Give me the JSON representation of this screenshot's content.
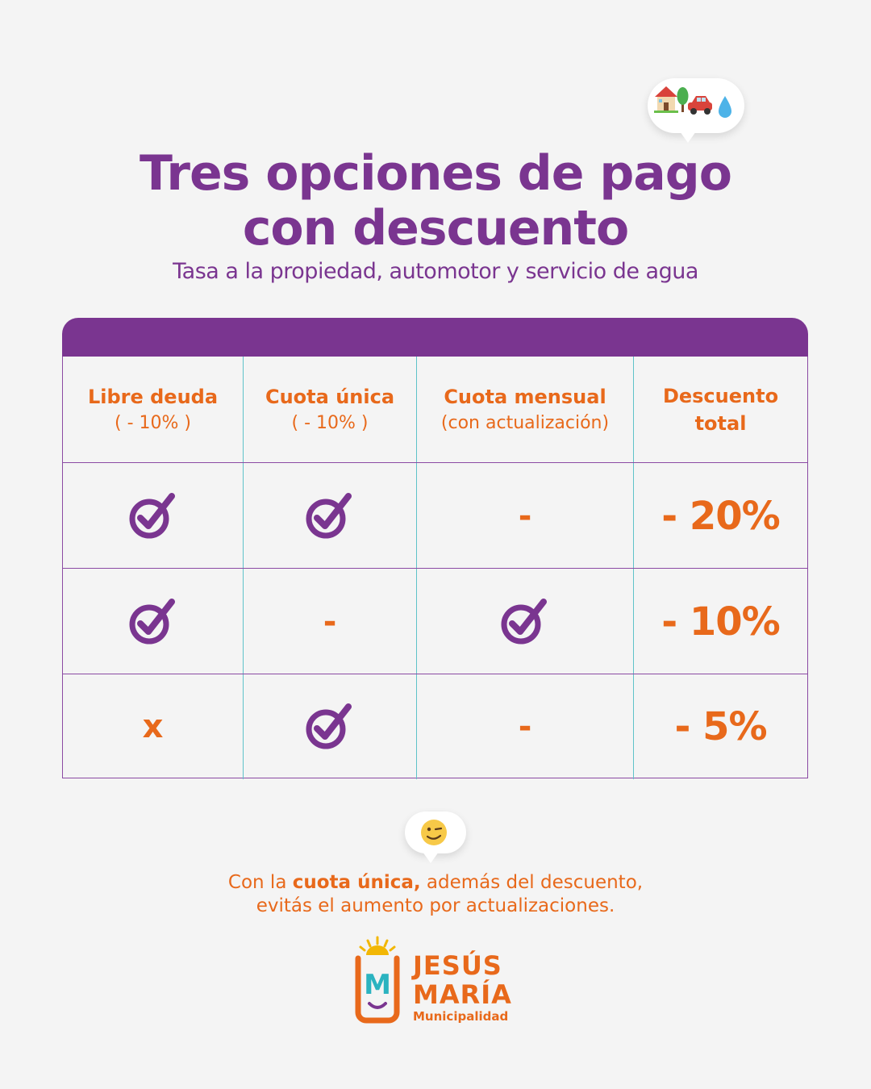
{
  "colors": {
    "purple": "#7a3590",
    "orange": "#e8691b",
    "teal": "#5fc3c9"
  },
  "header": {
    "title_line1": "Tres opciones de pago",
    "title_line2": "con descuento",
    "subtitle": "Tasa a la propiedad, automotor y servicio de agua",
    "icons": [
      "house-icon",
      "tree-icon",
      "car-icon",
      "water-drop-icon"
    ]
  },
  "table": {
    "columns": [
      {
        "label": "Libre deuda",
        "sub": "( - 10% )"
      },
      {
        "label": "Cuota única",
        "sub": "( - 10% )"
      },
      {
        "label": "Cuota mensual",
        "sub": "(con actualización)"
      },
      {
        "label": "Descuento",
        "sub": "total"
      }
    ],
    "rows": [
      {
        "cells": [
          "check",
          "check",
          "-"
        ],
        "total": "- 20%"
      },
      {
        "cells": [
          "check",
          "-",
          "check"
        ],
        "total": "- 10%"
      },
      {
        "cells": [
          "x",
          "check",
          "-"
        ],
        "total": "- 5%"
      }
    ]
  },
  "note": {
    "prefix": "Con la ",
    "bold": "cuota única,",
    "suffix": " además del descuento,",
    "line2": "evitás el aumento por actualizaciones.",
    "icon": "wink-emoji-icon"
  },
  "logo": {
    "line1": "JESÚS",
    "line2": "MARÍA",
    "line3": "Municipalidad",
    "mark": "M"
  }
}
